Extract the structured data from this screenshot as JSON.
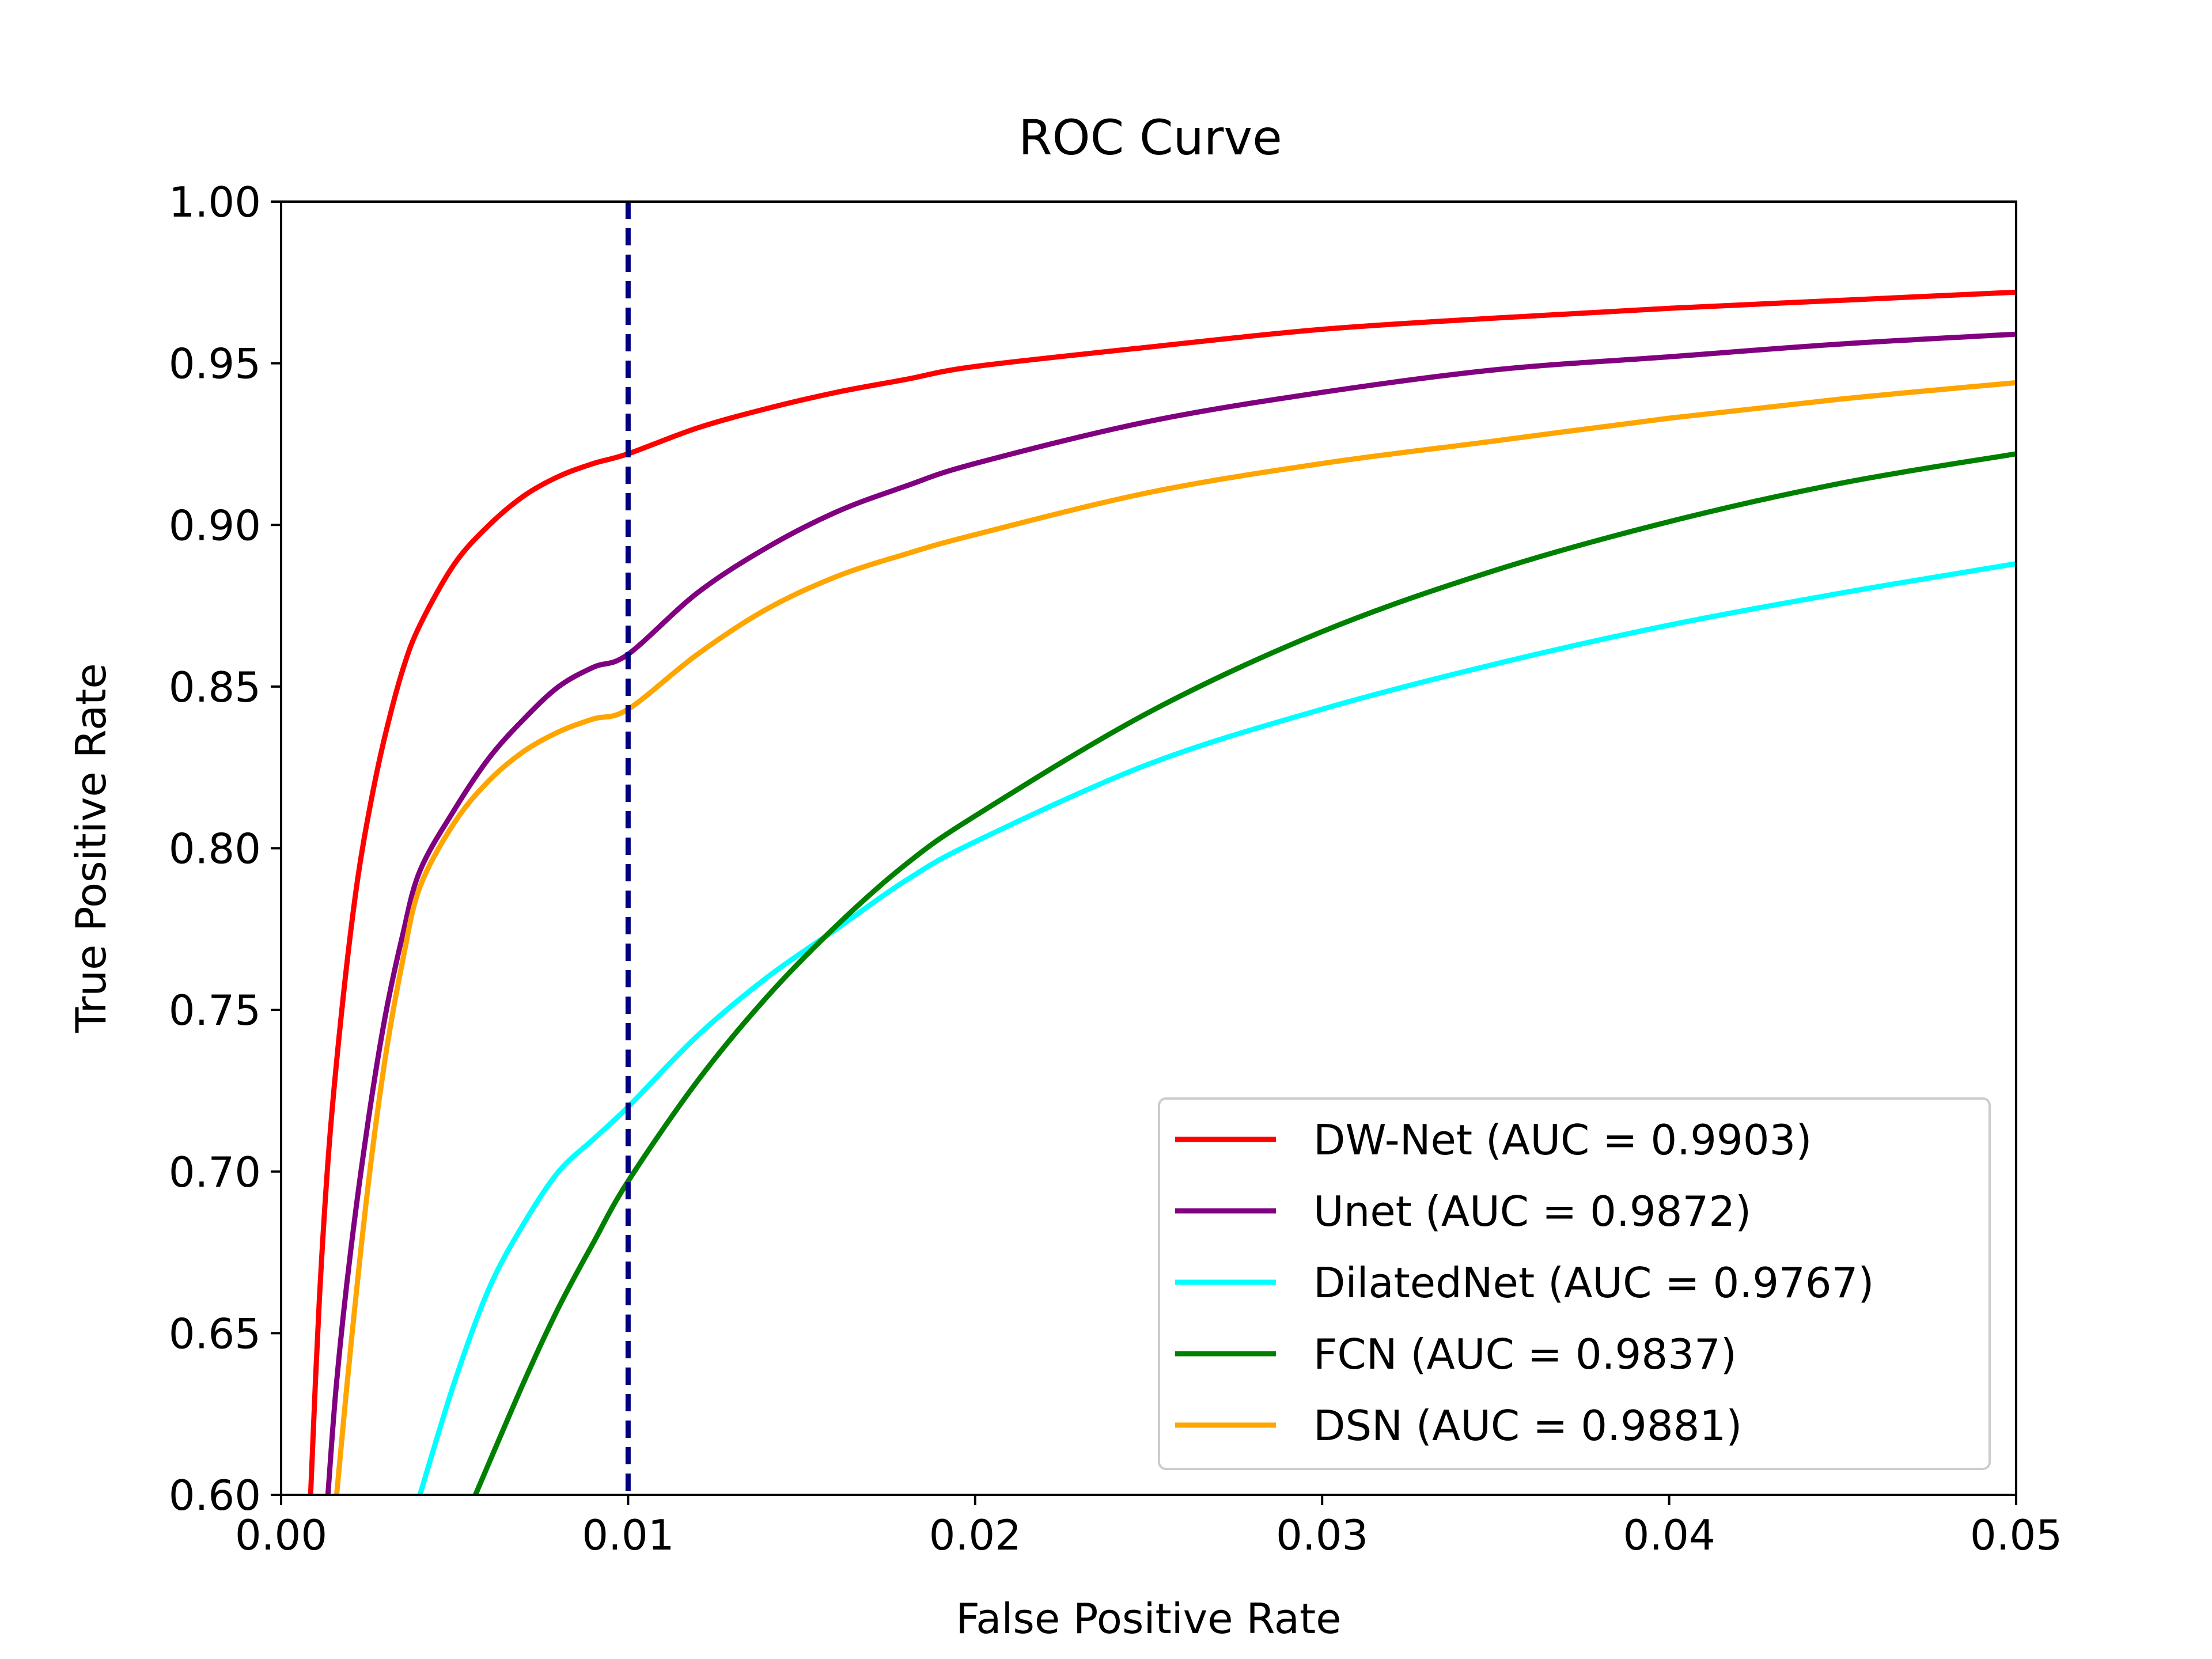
{
  "chart_data": {
    "type": "line",
    "title": "ROC Curve",
    "xlabel": "False Positive Rate",
    "ylabel": "True Positive Rate",
    "xlim": [
      0.0,
      0.05
    ],
    "ylim": [
      0.6,
      1.0
    ],
    "xticks": [
      0.0,
      0.01,
      0.02,
      0.03,
      0.04,
      0.05
    ],
    "yticks": [
      0.6,
      0.65,
      0.7,
      0.75,
      0.8,
      0.85,
      0.9,
      0.95,
      1.0
    ],
    "xtick_labels": [
      "0.00",
      "0.01",
      "0.02",
      "0.03",
      "0.04",
      "0.05"
    ],
    "ytick_labels": [
      "0.60",
      "0.65",
      "0.70",
      "0.75",
      "0.80",
      "0.85",
      "0.90",
      "0.95",
      "1.00"
    ],
    "grid": false,
    "legend_position": "lower-right",
    "reference_line": {
      "type": "vertical-dashed",
      "x": 0.01,
      "color": "#000080"
    },
    "series": [
      {
        "name": "DW-Net (AUC = 0.9903)",
        "color": "#ff0000",
        "x": [
          0.00085,
          0.0011,
          0.0014,
          0.0018,
          0.0022,
          0.0026,
          0.003,
          0.0035,
          0.004,
          0.005,
          0.006,
          0.007,
          0.008,
          0.009,
          0.01,
          0.012,
          0.014,
          0.016,
          0.018,
          0.02,
          0.025,
          0.03,
          0.035,
          0.04,
          0.045,
          0.05
        ],
        "y": [
          0.6,
          0.66,
          0.71,
          0.755,
          0.79,
          0.815,
          0.835,
          0.855,
          0.869,
          0.888,
          0.9,
          0.909,
          0.915,
          0.919,
          0.922,
          0.93,
          0.936,
          0.941,
          0.945,
          0.949,
          0.955,
          0.9605,
          0.964,
          0.967,
          0.9695,
          0.972
        ]
      },
      {
        "name": "Unet (AUC = 0.9872)",
        "color": "#800080",
        "x": [
          0.00135,
          0.0016,
          0.002,
          0.0025,
          0.003,
          0.0035,
          0.004,
          0.005,
          0.006,
          0.007,
          0.008,
          0.009,
          0.01,
          0.012,
          0.014,
          0.016,
          0.018,
          0.02,
          0.025,
          0.03,
          0.035,
          0.04,
          0.045,
          0.05
        ],
        "y": [
          0.6,
          0.635,
          0.675,
          0.715,
          0.748,
          0.773,
          0.793,
          0.812,
          0.828,
          0.84,
          0.85,
          0.856,
          0.86,
          0.879,
          0.893,
          0.904,
          0.912,
          0.919,
          0.932,
          0.941,
          0.948,
          0.952,
          0.956,
          0.959
        ]
      },
      {
        "name": "DilatedNet (AUC = 0.9767)",
        "color": "#00ffff",
        "x": [
          0.004,
          0.005,
          0.006,
          0.007,
          0.008,
          0.009,
          0.01,
          0.012,
          0.014,
          0.016,
          0.018,
          0.02,
          0.025,
          0.03,
          0.035,
          0.04,
          0.045,
          0.05
        ],
        "y": [
          0.6,
          0.635,
          0.664,
          0.684,
          0.7,
          0.71,
          0.72,
          0.742,
          0.76,
          0.775,
          0.79,
          0.802,
          0.826,
          0.843,
          0.857,
          0.869,
          0.879,
          0.888
        ]
      },
      {
        "name": "FCN (AUC = 0.9837)",
        "color": "#008000",
        "x": [
          0.0056,
          0.007,
          0.008,
          0.009,
          0.01,
          0.012,
          0.014,
          0.016,
          0.018,
          0.02,
          0.025,
          0.03,
          0.035,
          0.04,
          0.045,
          0.05
        ],
        "y": [
          0.6,
          0.635,
          0.658,
          0.678,
          0.697,
          0.728,
          0.754,
          0.776,
          0.795,
          0.81,
          0.842,
          0.867,
          0.886,
          0.901,
          0.913,
          0.922
        ]
      },
      {
        "name": "DSN (AUC = 0.9881)",
        "color": "#ffa500",
        "x": [
          0.0016,
          0.002,
          0.0025,
          0.003,
          0.0035,
          0.004,
          0.005,
          0.006,
          0.007,
          0.008,
          0.009,
          0.01,
          0.012,
          0.014,
          0.016,
          0.018,
          0.02,
          0.025,
          0.03,
          0.035,
          0.04,
          0.045,
          0.05
        ],
        "y": [
          0.6,
          0.645,
          0.695,
          0.735,
          0.765,
          0.788,
          0.808,
          0.821,
          0.83,
          0.836,
          0.84,
          0.843,
          0.86,
          0.874,
          0.884,
          0.891,
          0.897,
          0.91,
          0.919,
          0.926,
          0.933,
          0.939,
          0.944
        ]
      }
    ]
  }
}
